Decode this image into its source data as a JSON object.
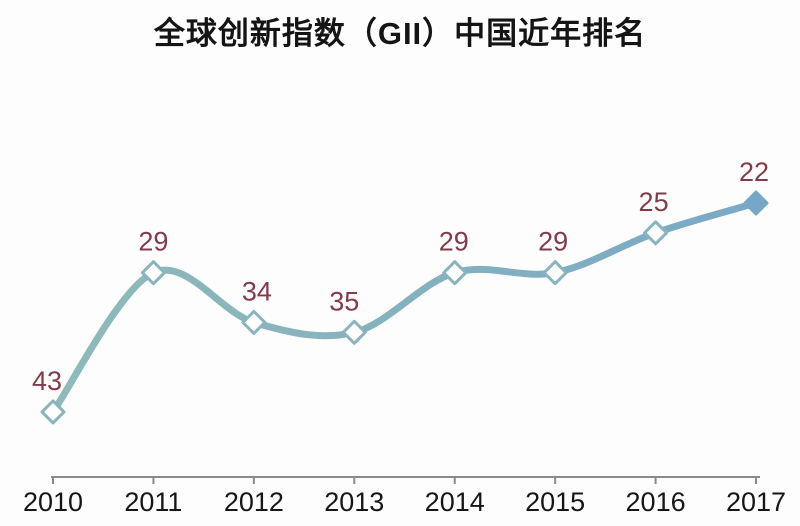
{
  "title": "全球创新指数（GII）中国近年排名",
  "chart_data": {
    "type": "line",
    "title": "全球创新指数（GII）中国近年排名",
    "categories": [
      "2010",
      "2011",
      "2012",
      "2013",
      "2014",
      "2015",
      "2016",
      "2017"
    ],
    "values": [
      43,
      29,
      34,
      35,
      29,
      29,
      25,
      22
    ],
    "xlabel": "",
    "ylabel": "",
    "ylim": [
      45,
      20
    ],
    "y_axis_inverted": true,
    "y_axis_visible": false,
    "grid": false,
    "legend_position": "none",
    "data_labels": true,
    "line_style": "smooth",
    "marker_style": "open-diamond",
    "last_point_marker_style": "filled-diamond"
  },
  "colors": {
    "line_start": "#8fbab8",
    "line_end": "#7aa9c6",
    "marker_fill": "#ffffff",
    "marker_stroke": "#8ab4bd",
    "last_marker_fill": "#77a7c6",
    "value_label": "#833b49",
    "axis": "#8a8a8a",
    "year_label": "#161616",
    "title": "#141414",
    "background": "#fdfdfd"
  }
}
